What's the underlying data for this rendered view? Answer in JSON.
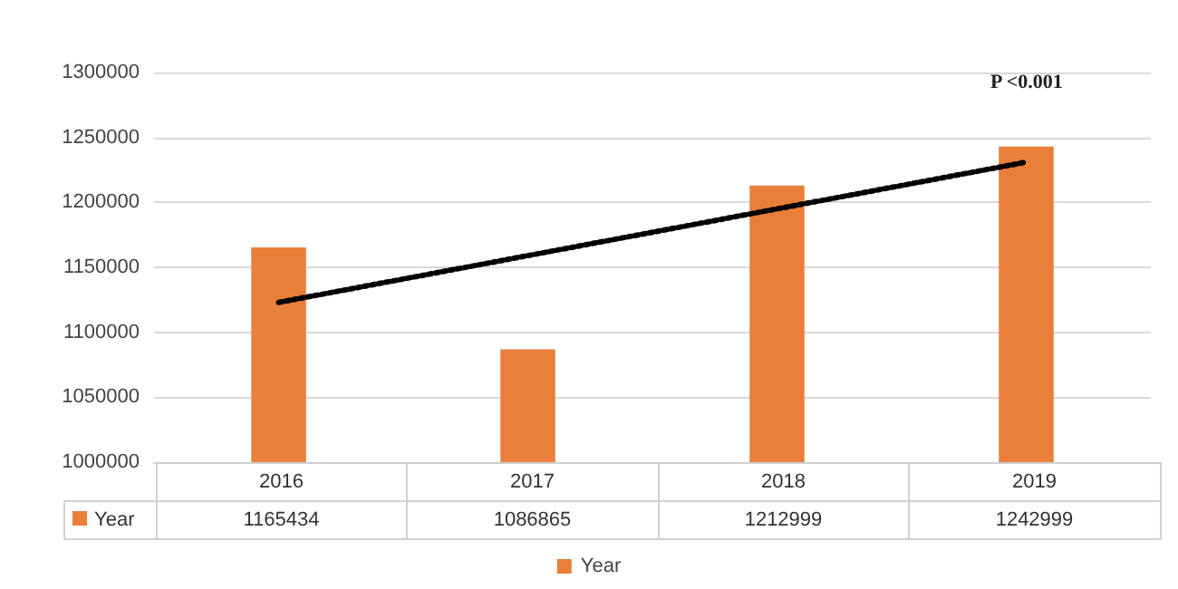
{
  "chart_data": {
    "type": "bar",
    "categories": [
      "2016",
      "2017",
      "2018",
      "2019"
    ],
    "series": [
      {
        "name": "Year",
        "color": "#e8803a",
        "values": [
          1165434,
          1086865,
          1212999,
          1242999
        ],
        "value_labels": [
          "1165434",
          "1086865",
          "1212999",
          "1242999"
        ]
      },
      {
        "type": "line",
        "values": [
          1123000,
          1159000,
          1195000,
          1231000
        ],
        "color": "#000000",
        "line_style": "dotted"
      }
    ],
    "ylim": [
      1000000,
      1300000
    ],
    "yticks": [
      1000000,
      1050000,
      1100000,
      1150000,
      1200000,
      1250000,
      1300000
    ],
    "grid": "y",
    "legend": "bottom",
    "annotations": [
      "P <0.001"
    ]
  }
}
